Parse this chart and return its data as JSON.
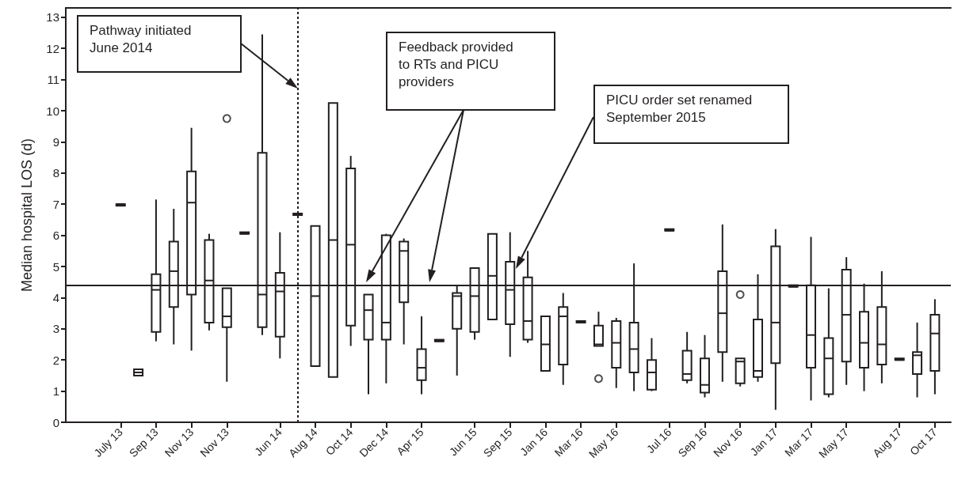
{
  "chart_data": {
    "type": "box",
    "ylabel": "Median hospital LOS (d)",
    "categories": [
      "July 13",
      null,
      "Sep 13",
      null,
      "Nov 13",
      null,
      "Nov 13",
      null,
      null,
      "Jun 14",
      null,
      "Aug 14",
      null,
      "Oct 14",
      null,
      "Dec 14",
      null,
      "Apr 15",
      null,
      null,
      "Jun 15",
      null,
      "Sep 15",
      null,
      "Jan 16",
      null,
      "Mar 16",
      null,
      "May 16",
      null,
      null,
      "Jul 16",
      null,
      "Sep 16",
      null,
      "Nov 16",
      null,
      "Jan 17",
      null,
      "Mar 17",
      null,
      "May 17",
      null,
      null,
      "Aug 17",
      null,
      "Oct 17"
    ],
    "boxes": [
      {
        "low": 7.0,
        "q1": 6.95,
        "median": 7.0,
        "q3": 7.0,
        "high": 7.0
      },
      {
        "low": 1.5,
        "q1": 1.5,
        "median": 1.6,
        "q3": 1.7,
        "high": 1.7
      },
      {
        "low": 2.6,
        "q1": 2.9,
        "median": 4.25,
        "q3": 4.75,
        "high": 7.15
      },
      {
        "low": 2.5,
        "q1": 3.7,
        "median": 4.85,
        "q3": 5.8,
        "high": 6.85
      },
      {
        "low": 2.3,
        "q1": 4.1,
        "median": 7.05,
        "q3": 8.05,
        "high": 9.45
      },
      {
        "low": 2.95,
        "q1": 3.2,
        "median": 4.55,
        "q3": 5.85,
        "high": 6.05
      },
      {
        "low": 1.3,
        "q1": 3.05,
        "median": 3.4,
        "q3": 4.3,
        "high": 4.3,
        "outliers": [
          9.75
        ]
      },
      {
        "low": 6.05,
        "q1": 6.05,
        "median": 6.05,
        "q3": 6.05,
        "high": 6.05
      },
      {
        "low": 2.8,
        "q1": 3.05,
        "median": 4.1,
        "q3": 8.65,
        "high": 12.45
      },
      {
        "low": 2.05,
        "q1": 2.75,
        "median": 4.2,
        "q3": 4.8,
        "high": 6.1
      },
      {
        "low": 6.65,
        "q1": 6.65,
        "median": 6.65,
        "q3": 6.65,
        "high": 6.65
      },
      {
        "low": 1.8,
        "q1": 1.8,
        "median": 4.05,
        "q3": 6.3,
        "high": 6.3
      },
      {
        "low": 1.45,
        "q1": 1.45,
        "median": 5.85,
        "q3": 10.25,
        "high": 10.25
      },
      {
        "low": 2.45,
        "q1": 3.1,
        "median": 5.7,
        "q3": 8.15,
        "high": 8.55
      },
      {
        "low": 0.9,
        "q1": 2.65,
        "median": 3.6,
        "q3": 4.1,
        "high": 4.1
      },
      {
        "low": 1.25,
        "q1": 2.65,
        "median": 3.2,
        "q3": 6.0,
        "high": 6.05
      },
      {
        "low": 2.5,
        "q1": 3.85,
        "median": 5.5,
        "q3": 5.8,
        "high": 5.9
      },
      {
        "low": 0.9,
        "q1": 1.35,
        "median": 1.75,
        "q3": 2.35,
        "high": 3.4
      },
      {
        "low": 2.6,
        "q1": 2.6,
        "median": 2.6,
        "q3": 2.6,
        "high": 2.6
      },
      {
        "low": 1.5,
        "q1": 3.0,
        "median": 4.05,
        "q3": 4.15,
        "high": 4.4
      },
      {
        "low": 2.65,
        "q1": 2.9,
        "median": 4.05,
        "q3": 4.95,
        "high": 4.95
      },
      {
        "low": 3.3,
        "q1": 3.3,
        "median": 4.7,
        "q3": 6.05,
        "high": 6.05
      },
      {
        "low": 2.1,
        "q1": 3.15,
        "median": 4.25,
        "q3": 5.15,
        "high": 6.1
      },
      {
        "low": 2.55,
        "q1": 2.65,
        "median": 3.25,
        "q3": 4.65,
        "high": 5.5
      },
      {
        "low": 1.65,
        "q1": 1.65,
        "median": 2.5,
        "q3": 3.4,
        "high": 3.4
      },
      {
        "low": 1.2,
        "q1": 1.85,
        "median": 3.4,
        "q3": 3.7,
        "high": 4.15
      },
      {
        "low": 3.2,
        "q1": 3.2,
        "median": 3.2,
        "q3": 3.2,
        "high": 3.2
      },
      {
        "low": 2.45,
        "q1": 2.45,
        "median": 2.5,
        "q3": 3.1,
        "high": 3.55,
        "outliers": [
          1.4
        ]
      },
      {
        "low": 1.1,
        "q1": 1.75,
        "median": 2.55,
        "q3": 3.25,
        "high": 3.35
      },
      {
        "low": 1.0,
        "q1": 1.6,
        "median": 2.35,
        "q3": 3.2,
        "high": 5.1
      },
      {
        "low": 1.0,
        "q1": 1.05,
        "median": 1.6,
        "q3": 2.0,
        "high": 2.7
      },
      {
        "low": 6.15,
        "q1": 6.15,
        "median": 6.15,
        "q3": 6.15,
        "high": 6.15
      },
      {
        "low": 1.25,
        "q1": 1.35,
        "median": 1.55,
        "q3": 2.3,
        "high": 2.9
      },
      {
        "low": 0.8,
        "q1": 0.95,
        "median": 1.2,
        "q3": 2.05,
        "high": 2.8
      },
      {
        "low": 1.3,
        "q1": 2.25,
        "median": 3.5,
        "q3": 4.85,
        "high": 6.35
      },
      {
        "low": 1.15,
        "q1": 1.25,
        "median": 1.95,
        "q3": 2.05,
        "high": 2.05,
        "outliers": [
          4.1
        ]
      },
      {
        "low": 1.3,
        "q1": 1.45,
        "median": 1.65,
        "q3": 3.3,
        "high": 4.75
      },
      {
        "low": 0.4,
        "q1": 1.9,
        "median": 3.2,
        "q3": 5.65,
        "high": 6.2
      },
      {
        "low": 4.35,
        "q1": 4.35,
        "median": 4.35,
        "q3": 4.35,
        "high": 4.35
      },
      {
        "low": 0.7,
        "q1": 1.75,
        "median": 2.8,
        "q3": 4.4,
        "high": 5.95
      },
      {
        "low": 0.8,
        "q1": 0.9,
        "median": 2.05,
        "q3": 2.7,
        "high": 4.3
      },
      {
        "low": 1.2,
        "q1": 1.95,
        "median": 3.45,
        "q3": 4.9,
        "high": 5.3
      },
      {
        "low": 1.0,
        "q1": 1.75,
        "median": 2.55,
        "q3": 3.55,
        "high": 4.45
      },
      {
        "low": 1.25,
        "q1": 1.85,
        "median": 2.5,
        "q3": 3.7,
        "high": 4.85
      },
      {
        "low": 2.0,
        "q1": 2.0,
        "median": 2.0,
        "q3": 2.0,
        "high": 2.0
      },
      {
        "low": 0.8,
        "q1": 1.55,
        "median": 2.15,
        "q3": 2.25,
        "high": 3.2
      },
      {
        "low": 0.9,
        "q1": 1.65,
        "median": 2.85,
        "q3": 3.45,
        "high": 3.95
      }
    ],
    "ylim": [
      0,
      13.3
    ],
    "yticks": [
      0,
      1,
      2,
      3,
      4,
      5,
      6,
      7,
      8,
      9,
      10,
      11,
      12,
      13
    ],
    "ref_lines": [
      {
        "axis": "y",
        "value": 4.4,
        "line_style": "solid"
      }
    ],
    "annotations": [
      "Pathway initiated June 2014",
      "Feedback provided to RTs and PICU providers",
      "PICU order set renamed September 2015"
    ]
  }
}
